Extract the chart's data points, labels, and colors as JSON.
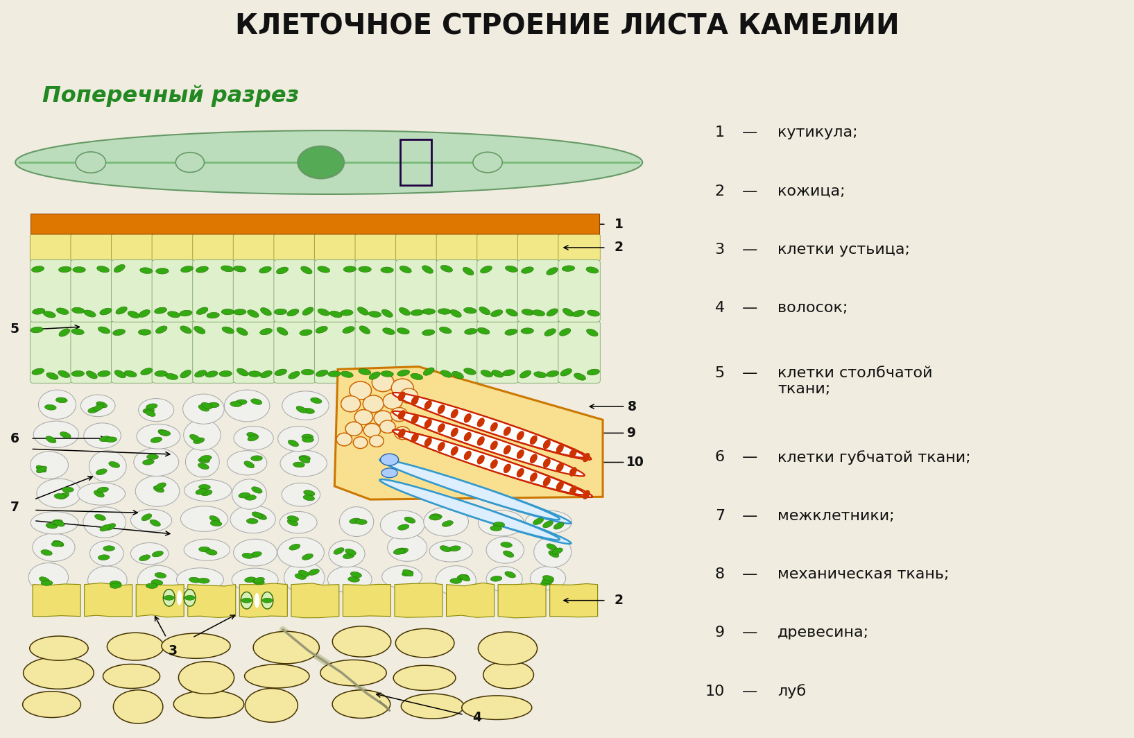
{
  "title": "КЛЕТОЧНОЕ СТРОЕНИЕ ЛИСТА КАМЕЛИИ",
  "subtitle": "Поперечный разрез",
  "bg_color": "#f0ece0",
  "cuticle_color": "#cc6600",
  "upper_epi_color": "#f0e080",
  "palisade_cell_color": "#dff0cc",
  "palisade_border": "#88aa77",
  "spongy_cell_color": "#f0f0ec",
  "spongy_border": "#aaaaaa",
  "lower_epi_color": "#f0e070",
  "lower_epi_border": "#888800",
  "chloroplast_color": "#33aa11",
  "chloroplast_border": "#226600",
  "xylem_orange": "#cc8800",
  "xylem_red": "#cc2200",
  "phloem_blue": "#3399cc",
  "fiber_fill": "#f8e090",
  "fiber_border": "#cc8800",
  "vessel_fill_red": "#ffffff",
  "vessel_fill_blue": "#ddeeff",
  "leaf_fill": "#bbddbb",
  "leaf_edge": "#669966",
  "legend_items": [
    {
      "num": "1",
      "text": "кутикула;"
    },
    {
      "num": "2",
      "text": "кожица;"
    },
    {
      "num": "3",
      "text": "клетки устьица;"
    },
    {
      "num": "4",
      "text": "волосок;"
    },
    {
      "num": "5",
      "text": "клетки столбчатой\nткани;"
    },
    {
      "num": "6",
      "text": "клетки губчатой ткани;"
    },
    {
      "num": "7",
      "text": "межклетники;"
    },
    {
      "num": "8",
      "text": "механическая ткань;"
    },
    {
      "num": "9",
      "text": "древесина;"
    },
    {
      "num": "10",
      "text": "луб"
    }
  ]
}
